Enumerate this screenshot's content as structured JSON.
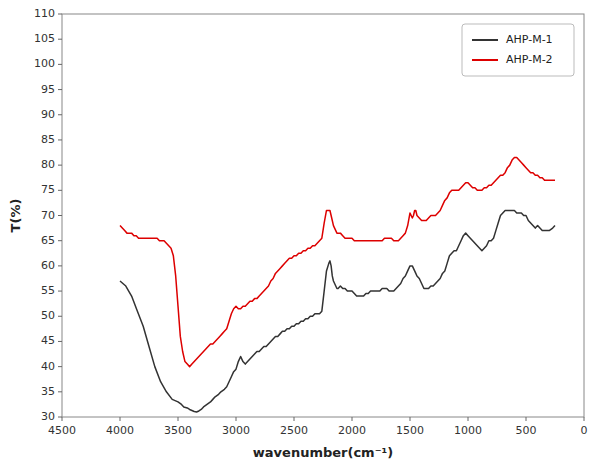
{
  "chart_data": {
    "type": "line",
    "xlabel": "wavenumber(cm⁻¹)",
    "ylabel": "T(%)",
    "xlim": [
      4500,
      0
    ],
    "ylim": [
      30,
      110
    ],
    "xticks": [
      4500,
      4000,
      3500,
      3000,
      2500,
      2000,
      1500,
      1000,
      500,
      0
    ],
    "yticks": [
      30,
      35,
      40,
      45,
      50,
      55,
      60,
      65,
      70,
      75,
      80,
      85,
      90,
      95,
      100,
      105,
      110
    ],
    "grid": false,
    "legend": "upper right",
    "series": [
      {
        "name": "AHP-M-1",
        "color": "#333333",
        "x": [
          4000,
          3950,
          3900,
          3850,
          3800,
          3750,
          3700,
          3650,
          3600,
          3550,
          3500,
          3470,
          3450,
          3420,
          3400,
          3380,
          3360,
          3340,
          3320,
          3300,
          3280,
          3250,
          3220,
          3200,
          3180,
          3150,
          3130,
          3100,
          3080,
          3060,
          3040,
          3020,
          3000,
          2980,
          2960,
          2940,
          2920,
          2900,
          2880,
          2860,
          2840,
          2820,
          2800,
          2780,
          2760,
          2740,
          2720,
          2700,
          2680,
          2660,
          2640,
          2620,
          2600,
          2580,
          2560,
          2540,
          2520,
          2500,
          2480,
          2460,
          2440,
          2420,
          2400,
          2380,
          2360,
          2340,
          2320,
          2300,
          2280,
          2260,
          2240,
          2220,
          2200,
          2190,
          2180,
          2170,
          2160,
          2150,
          2140,
          2130,
          2120,
          2100,
          2080,
          2060,
          2040,
          2020,
          2000,
          1980,
          1960,
          1940,
          1920,
          1900,
          1880,
          1860,
          1840,
          1820,
          1800,
          1780,
          1760,
          1740,
          1720,
          1700,
          1680,
          1660,
          1640,
          1620,
          1600,
          1580,
          1560,
          1540,
          1520,
          1500,
          1480,
          1460,
          1450,
          1440,
          1420,
          1400,
          1380,
          1360,
          1340,
          1320,
          1300,
          1280,
          1260,
          1240,
          1220,
          1200,
          1180,
          1160,
          1140,
          1120,
          1100,
          1080,
          1060,
          1040,
          1020,
          1000,
          980,
          960,
          940,
          920,
          900,
          880,
          860,
          840,
          820,
          800,
          780,
          760,
          740,
          720,
          700,
          680,
          660,
          640,
          620,
          600,
          580,
          560,
          540,
          520,
          500,
          480,
          460,
          440,
          420,
          400,
          380,
          360,
          340,
          320,
          300,
          270,
          250
        ],
        "values": [
          57,
          56,
          54,
          51,
          48,
          44,
          40,
          37,
          35,
          33.5,
          33,
          32.5,
          32,
          31.8,
          31.5,
          31.3,
          31.1,
          31.0,
          31.2,
          31.5,
          32,
          32.5,
          33,
          33.5,
          34,
          34.5,
          35,
          35.5,
          36,
          37,
          38,
          39,
          39.5,
          41,
          42,
          41,
          40.5,
          41,
          41.5,
          42,
          42.5,
          43,
          43,
          43.5,
          44,
          44,
          44.5,
          45,
          45.5,
          46,
          46,
          46.5,
          47,
          47,
          47.5,
          47.5,
          48,
          48,
          48.5,
          48.5,
          49,
          49,
          49.5,
          49.5,
          50,
          50,
          50.5,
          50.5,
          50.5,
          51,
          55,
          59,
          60.5,
          61,
          60,
          58,
          57,
          56.5,
          56,
          55.5,
          55.5,
          56,
          55.5,
          55.5,
          55,
          55,
          55,
          54.5,
          54,
          54,
          54,
          54,
          54.5,
          54.5,
          55,
          55,
          55,
          55,
          55,
          55.5,
          55.5,
          55.5,
          55,
          55,
          55,
          55.5,
          56,
          56.5,
          57.5,
          58,
          59,
          60,
          60,
          59,
          58.5,
          58,
          57.5,
          56.5,
          55.5,
          55.5,
          55.5,
          56,
          56,
          56.5,
          57,
          57.5,
          58.5,
          59,
          60.5,
          62,
          62.5,
          63,
          63,
          64,
          65,
          66,
          66.5,
          66,
          65.5,
          65,
          64.5,
          64,
          63.5,
          63,
          63.5,
          64,
          65,
          65,
          65.5,
          67,
          68.5,
          70,
          70.5,
          71,
          71,
          71,
          71,
          71,
          70.5,
          70.5,
          70.5,
          70,
          70,
          69,
          68.5,
          68,
          67.5,
          68,
          67.5,
          67,
          67,
          67,
          67,
          67.5,
          68
        ]
      },
      {
        "name": "AHP-M-2",
        "color": "#dd0000",
        "x": [
          4000,
          3980,
          3960,
          3940,
          3920,
          3900,
          3880,
          3860,
          3840,
          3820,
          3800,
          3780,
          3760,
          3740,
          3720,
          3700,
          3680,
          3660,
          3640,
          3620,
          3600,
          3580,
          3560,
          3540,
          3520,
          3500,
          3480,
          3460,
          3440,
          3420,
          3400,
          3380,
          3360,
          3340,
          3320,
          3300,
          3280,
          3260,
          3240,
          3220,
          3200,
          3180,
          3160,
          3140,
          3120,
          3100,
          3080,
          3060,
          3040,
          3020,
          3000,
          2980,
          2960,
          2940,
          2920,
          2900,
          2880,
          2860,
          2840,
          2820,
          2800,
          2780,
          2760,
          2740,
          2720,
          2700,
          2680,
          2660,
          2640,
          2620,
          2600,
          2580,
          2560,
          2540,
          2520,
          2500,
          2480,
          2460,
          2440,
          2420,
          2400,
          2380,
          2360,
          2340,
          2320,
          2300,
          2280,
          2260,
          2240,
          2220,
          2200,
          2190,
          2180,
          2170,
          2160,
          2150,
          2140,
          2130,
          2120,
          2100,
          2080,
          2060,
          2040,
          2020,
          2000,
          1980,
          1960,
          1940,
          1920,
          1900,
          1880,
          1860,
          1840,
          1820,
          1800,
          1780,
          1760,
          1740,
          1720,
          1700,
          1680,
          1660,
          1640,
          1620,
          1600,
          1580,
          1560,
          1540,
          1520,
          1500,
          1490,
          1480,
          1470,
          1460,
          1450,
          1440,
          1420,
          1400,
          1380,
          1360,
          1340,
          1320,
          1300,
          1280,
          1260,
          1240,
          1220,
          1200,
          1180,
          1160,
          1140,
          1120,
          1100,
          1080,
          1060,
          1040,
          1020,
          1000,
          980,
          960,
          940,
          920,
          900,
          880,
          860,
          840,
          820,
          800,
          780,
          760,
          740,
          720,
          700,
          680,
          660,
          640,
          620,
          600,
          580,
          560,
          540,
          520,
          500,
          480,
          460,
          440,
          420,
          400,
          380,
          360,
          340,
          320,
          300,
          270,
          250
        ],
        "values": [
          68,
          67.5,
          67,
          66.5,
          66.5,
          66.5,
          66,
          66,
          65.5,
          65.5,
          65.5,
          65.5,
          65.5,
          65.5,
          65.5,
          65.5,
          65.5,
          65,
          65,
          65,
          64.5,
          64,
          63.5,
          62,
          58,
          52,
          46,
          43,
          41,
          40.5,
          40,
          40.5,
          41,
          41.5,
          42,
          42.5,
          43,
          43.5,
          44,
          44.5,
          44.5,
          45,
          45.5,
          46,
          46.5,
          47,
          47.5,
          49,
          50.5,
          51.5,
          52,
          51.5,
          51.5,
          52,
          52,
          52.5,
          53,
          53,
          53.5,
          53.5,
          54,
          54.5,
          55,
          55.5,
          56,
          57,
          57.5,
          58.5,
          59,
          59.5,
          60,
          60.5,
          61,
          61.5,
          61.5,
          62,
          62,
          62.5,
          62.5,
          63,
          63,
          63.5,
          63.5,
          64,
          64,
          64.5,
          65,
          65.5,
          68.5,
          71,
          71,
          71,
          70,
          69,
          68,
          67.5,
          67,
          66.5,
          66.5,
          66.5,
          66,
          65.5,
          65.5,
          65.5,
          65.5,
          65,
          65,
          65,
          65,
          65,
          65,
          65,
          65,
          65,
          65,
          65,
          65,
          65,
          65.5,
          65.5,
          65.5,
          65.5,
          65,
          65,
          65,
          65.5,
          66,
          66.5,
          68,
          70.5,
          70,
          69.5,
          70,
          71,
          71,
          70,
          69.5,
          69,
          69,
          69,
          69.5,
          70,
          70,
          70,
          70.5,
          71,
          72,
          73,
          73.5,
          74.5,
          75,
          75,
          75,
          75,
          75.5,
          76,
          76.5,
          76.5,
          76,
          75.5,
          75.5,
          75,
          75,
          75,
          75.5,
          75.5,
          76,
          76,
          76.5,
          77,
          77.5,
          78,
          78,
          78.5,
          79.5,
          80,
          81,
          81.5,
          81.5,
          81,
          80.5,
          80,
          79.5,
          79,
          78.5,
          78.5,
          78,
          78,
          77.5,
          77.5,
          77,
          77,
          77,
          77,
          77
        ]
      }
    ]
  }
}
